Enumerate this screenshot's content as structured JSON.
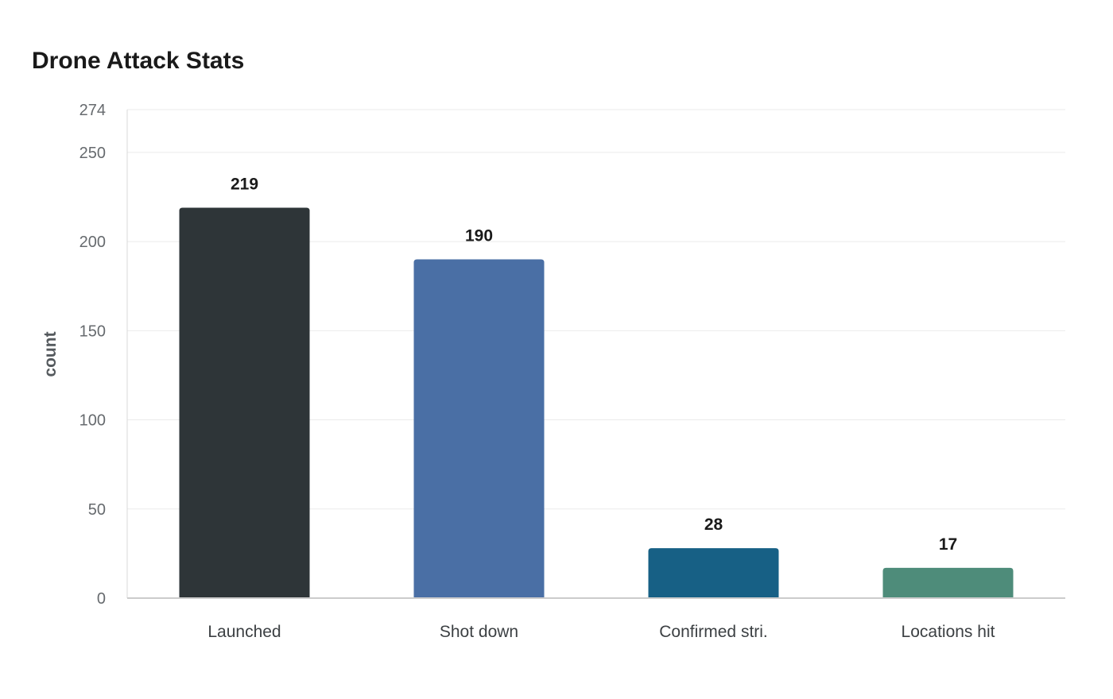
{
  "chart_data": {
    "type": "bar",
    "title": "Drone Attack Stats",
    "xlabel": "",
    "ylabel": "count",
    "categories": [
      "Launched",
      "Shot down",
      "Confirmed stri.",
      "Locations hit"
    ],
    "values": [
      219,
      190,
      28,
      17
    ],
    "colors": [
      "#2e3538",
      "#4a6fa5",
      "#176085",
      "#4e8c7a"
    ],
    "ylim": [
      0,
      274
    ],
    "yticks": [
      0,
      50,
      100,
      150,
      200,
      250,
      274
    ],
    "grid": true,
    "data_labels": true
  }
}
